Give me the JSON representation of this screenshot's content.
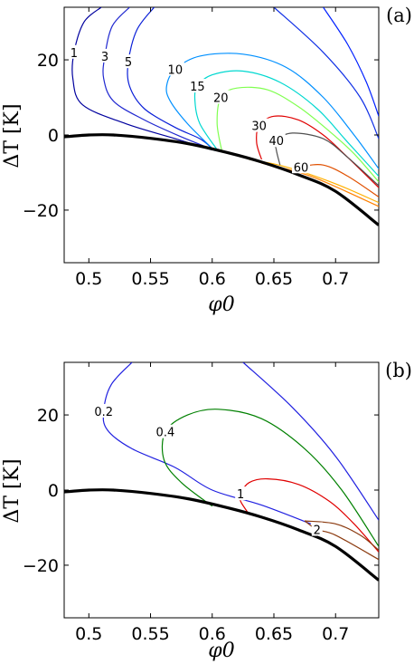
{
  "chart_data": [
    {
      "type": "line",
      "subtype": "contour",
      "panel_label": "(a)",
      "xlabel": "φ0",
      "ylabel": "ΔT [K]",
      "xlim": [
        0.48,
        0.735
      ],
      "ylim": [
        -34,
        34
      ],
      "xticks": [
        0.5,
        0.55,
        0.6,
        0.65,
        0.7
      ],
      "xtick_labels": [
        "0.5",
        "0.55",
        "0.6",
        "0.65",
        "0.7"
      ],
      "yticks": [
        20,
        0,
        -20
      ],
      "ytick_labels": [
        "20",
        "0",
        "−20"
      ],
      "grid": false,
      "boundary": {
        "color": "#000000",
        "points": [
          [
            0.48,
            -0.5
          ],
          [
            0.5,
            0
          ],
          [
            0.52,
            0
          ],
          [
            0.55,
            -0.9
          ],
          [
            0.58,
            -2.3
          ],
          [
            0.61,
            -4.5
          ],
          [
            0.64,
            -7.2
          ],
          [
            0.67,
            -10.6
          ],
          [
            0.7,
            -15.0
          ],
          [
            0.735,
            -24
          ]
        ]
      },
      "series": [
        {
          "level": "1",
          "color": "#00009e",
          "label_at": [
            0.488,
            22
          ],
          "points": [
            [
              0.51,
              34
            ],
            [
              0.496,
              30
            ],
            [
              0.488,
              22
            ],
            [
              0.487,
              15
            ],
            [
              0.495,
              8
            ],
            [
              0.53,
              3
            ],
            [
              0.57,
              -1
            ],
            [
              0.6,
              -4
            ]
          ]
        },
        {
          "level": "3",
          "color": "#2028d0",
          "label_at": [
            0.513,
            21
          ],
          "points": [
            [
              0.533,
              34
            ],
            [
              0.519,
              29
            ],
            [
              0.513,
              21
            ],
            [
              0.512,
              15
            ],
            [
              0.52,
              9
            ],
            [
              0.545,
              4
            ],
            [
              0.575,
              -0.5
            ],
            [
              0.6,
              -3.8
            ]
          ]
        },
        {
          "level": "5",
          "color": "#0a1fd8",
          "label_at": [
            0.532,
            19.5
          ],
          "points": [
            [
              0.553,
              34
            ],
            [
              0.539,
              28
            ],
            [
              0.532,
              19.5
            ],
            [
              0.533,
              13
            ],
            [
              0.545,
              7
            ],
            [
              0.57,
              2
            ],
            [
              0.59,
              -1
            ],
            [
              0.6,
              -3.6
            ]
          ]
        },
        {
          "level": "",
          "color": "#1030e6",
          "label_at": null,
          "points": [
            [
              0.65,
              34
            ],
            [
              0.69,
              22
            ],
            [
              0.72,
              10
            ],
            [
              0.735,
              -1
            ]
          ]
        },
        {
          "level": "",
          "color": "#0020ff",
          "label_at": null,
          "points": [
            [
              0.69,
              34
            ],
            [
              0.71,
              24
            ],
            [
              0.725,
              14
            ],
            [
              0.735,
              5
            ]
          ]
        },
        {
          "level": "10",
          "color": "#0090ff",
          "label_at": [
            0.57,
            17.5
          ],
          "points": [
            [
              0.602,
              -4.2
            ],
            [
              0.58,
              3
            ],
            [
              0.566,
              9
            ],
            [
              0.563,
              13
            ],
            [
              0.57,
              17.5
            ],
            [
              0.59,
              21
            ],
            [
              0.625,
              21.5
            ],
            [
              0.66,
              18
            ],
            [
              0.69,
              10
            ],
            [
              0.715,
              0
            ],
            [
              0.735,
              -9
            ]
          ]
        },
        {
          "level": "15",
          "color": "#00d8d0",
          "label_at": [
            0.588,
            13
          ],
          "points": [
            [
              0.605,
              -4.4
            ],
            [
              0.59,
              3
            ],
            [
              0.586,
              9
            ],
            [
              0.588,
              13
            ],
            [
              0.6,
              16
            ],
            [
              0.625,
              17
            ],
            [
              0.655,
              14
            ],
            [
              0.685,
              7
            ],
            [
              0.71,
              -2
            ],
            [
              0.735,
              -11
            ]
          ]
        },
        {
          "level": "20",
          "color": "#80ff50",
          "label_at": [
            0.607,
            10
          ],
          "points": [
            [
              0.608,
              -4.6
            ],
            [
              0.604,
              3
            ],
            [
              0.607,
              10
            ],
            [
              0.62,
              12.5
            ],
            [
              0.645,
              12
            ],
            [
              0.67,
              7.5
            ],
            [
              0.695,
              1
            ],
            [
              0.715,
              -5
            ],
            [
              0.735,
              -12.5
            ]
          ]
        },
        {
          "level": "30",
          "color": "#e00000",
          "label_at": [
            0.638,
            2.5
          ],
          "points": [
            [
              0.64,
              -6.5
            ],
            [
              0.636,
              -2
            ],
            [
              0.638,
              2.5
            ],
            [
              0.65,
              5
            ],
            [
              0.67,
              4
            ],
            [
              0.69,
              0
            ],
            [
              0.71,
              -6
            ],
            [
              0.735,
              -14
            ]
          ]
        },
        {
          "level": "40",
          "color": "#505050",
          "label_at": [
            0.652,
            -1.5
          ],
          "points": [
            [
              0.655,
              -8
            ],
            [
              0.652,
              -4
            ],
            [
              0.652,
              -1.5
            ],
            [
              0.665,
              0.5
            ],
            [
              0.69,
              -1
            ],
            [
              0.71,
              -6
            ],
            [
              0.735,
              -13.5
            ]
          ]
        },
        {
          "level": "60",
          "color": "#e05000",
          "label_at": [
            0.672,
            -8.5
          ],
          "points": [
            [
              0.665,
              -9.5
            ],
            [
              0.672,
              -8.5
            ],
            [
              0.69,
              -8
            ],
            [
              0.71,
              -11
            ],
            [
              0.735,
              -16.5
            ]
          ]
        },
        {
          "level": "",
          "color": "#ffb000",
          "label_at": null,
          "points": [
            [
              0.63,
              -6.5
            ],
            [
              0.66,
              -8.5
            ],
            [
              0.7,
              -13
            ],
            [
              0.735,
              -18
            ]
          ]
        },
        {
          "level": "",
          "color": "#ff8000",
          "label_at": null,
          "points": [
            [
              0.64,
              -7.5
            ],
            [
              0.68,
              -11
            ],
            [
              0.735,
              -19
            ]
          ]
        }
      ]
    },
    {
      "type": "line",
      "subtype": "contour",
      "panel_label": "(b)",
      "xlabel": "φ0",
      "ylabel": "ΔT [K]",
      "xlim": [
        0.48,
        0.735
      ],
      "ylim": [
        -34,
        34
      ],
      "xticks": [
        0.5,
        0.55,
        0.6,
        0.65,
        0.7
      ],
      "xtick_labels": [
        "0.5",
        "0.55",
        "0.6",
        "0.65",
        "0.7"
      ],
      "yticks": [
        20,
        0,
        -20
      ],
      "ytick_labels": [
        "20",
        "0",
        "−20"
      ],
      "grid": false,
      "boundary": {
        "color": "#000000",
        "points": [
          [
            0.48,
            -0.5
          ],
          [
            0.5,
            0
          ],
          [
            0.52,
            0
          ],
          [
            0.55,
            -0.9
          ],
          [
            0.58,
            -2.3
          ],
          [
            0.61,
            -4.5
          ],
          [
            0.64,
            -7.2
          ],
          [
            0.67,
            -10.6
          ],
          [
            0.7,
            -15.0
          ],
          [
            0.735,
            -24
          ]
        ]
      },
      "series": [
        {
          "level": "0.2",
          "color": "#2020e0",
          "label_at": [
            0.512,
            21
          ],
          "points": [
            [
              0.535,
              34
            ],
            [
              0.518,
              28
            ],
            [
              0.512,
              21
            ],
            [
              0.515,
              16
            ],
            [
              0.535,
              11
            ],
            [
              0.57,
              6
            ],
            [
              0.6,
              0
            ],
            [
              0.64,
              -4
            ],
            [
              0.68,
              -9
            ]
          ]
        },
        {
          "level": "",
          "color": "#2020e0",
          "label_at": null,
          "points": [
            [
              0.625,
              34
            ],
            [
              0.665,
              22
            ],
            [
              0.7,
              9
            ],
            [
              0.735,
              -8
            ]
          ]
        },
        {
          "level": "0.4",
          "color": "#008000",
          "label_at": [
            0.562,
            15.5
          ],
          "points": [
            [
              0.6,
              -4.3
            ],
            [
              0.575,
              2
            ],
            [
              0.561,
              8
            ],
            [
              0.562,
              15.5
            ],
            [
              0.58,
              20
            ],
            [
              0.605,
              21.5
            ],
            [
              0.64,
              19
            ],
            [
              0.675,
              11
            ],
            [
              0.705,
              0
            ],
            [
              0.735,
              -15
            ]
          ]
        },
        {
          "level": "1",
          "color": "#e00000",
          "label_at": [
            0.623,
            -1
          ],
          "points": [
            [
              0.63,
              -6.5
            ],
            [
              0.623,
              -3
            ],
            [
              0.623,
              -1
            ],
            [
              0.63,
              2
            ],
            [
              0.645,
              3
            ],
            [
              0.67,
              1.5
            ],
            [
              0.695,
              -3
            ],
            [
              0.715,
              -9
            ],
            [
              0.735,
              -16.5
            ]
          ]
        },
        {
          "level": "2",
          "color": "#8b3a0f",
          "label_at": [
            0.685,
            -10.5
          ],
          "points": [
            [
              0.675,
              -8.2
            ],
            [
              0.685,
              -10.5
            ],
            [
              0.7,
              -12
            ],
            [
              0.735,
              -18.5
            ]
          ]
        },
        {
          "level": "",
          "color": "#8b3a0f",
          "label_at": null,
          "points": [
            [
              0.675,
              -8.2
            ],
            [
              0.7,
              -9
            ],
            [
              0.72,
              -12
            ],
            [
              0.735,
              -16
            ]
          ]
        }
      ]
    }
  ]
}
